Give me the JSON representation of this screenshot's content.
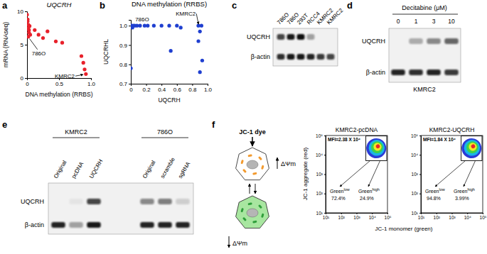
{
  "panel_labels": [
    "a",
    "b",
    "c",
    "d",
    "e",
    "f"
  ],
  "chart_data": [
    {
      "type": "scatter",
      "title": "UQCRH",
      "x_label": "DNA methylation (RRBS)",
      "y_label": "mRNA (RNAseq)",
      "x": [
        0.0,
        0.01,
        0.02,
        0.02,
        0.03,
        0.03,
        0.04,
        0.05,
        0.01,
        0.02,
        0.12,
        0.18,
        0.25,
        0.32,
        0.45,
        0.55,
        0.85,
        0.88,
        0.9,
        0.92
      ],
      "values": [
        9.5,
        8.5,
        8.0,
        7.5,
        7.2,
        6.8,
        7.8,
        6.5,
        8.8,
        6.2,
        7.2,
        6.5,
        6.0,
        7.0,
        5.5,
        5.3,
        3.3,
        2.3,
        1.3,
        0.6
      ],
      "color": "#e8212b",
      "marker": "circle",
      "xlim": [
        0,
        1
      ],
      "xticks": [
        0,
        0.5,
        {
          "value": 1,
          "label": "1.0"
        }
      ],
      "ylim": [
        0,
        10
      ],
      "yticks": [
        0,
        5,
        10
      ],
      "annotations": [
        {
          "text": "786O",
          "x": 0.03,
          "y": 6.2
        },
        {
          "text": "KMRC2",
          "x": 0.9,
          "y": 0.3
        }
      ]
    },
    {
      "type": "scatter",
      "title": "DNA methylation (RRBS)",
      "x_label": "UQCRH",
      "y_label": "UQCRHL",
      "x": [
        0.0,
        0.01,
        0.02,
        0.03,
        0.05,
        0.08,
        0.12,
        0.18,
        0.22,
        0.3,
        0.4,
        0.5,
        0.6,
        0.65,
        0.88,
        0.9,
        0.92,
        0.0,
        0.52,
        0.88,
        0.9,
        0.93
      ],
      "values": [
        1.0,
        1.0,
        0.99,
        1.0,
        1.0,
        1.0,
        1.0,
        1.0,
        1.0,
        1.0,
        1.0,
        1.0,
        1.0,
        0.99,
        1.0,
        0.97,
        1.0,
        0.78,
        0.87,
        0.92,
        0.76,
        0.82
      ],
      "color": "#1f3fd0",
      "marker": "circle",
      "xlim": [
        0,
        1
      ],
      "xticks": [
        0,
        0.2,
        0.4,
        0.6,
        0.8,
        {
          "value": 1,
          "label": "1.0"
        }
      ],
      "ylim": [
        0.7,
        1.03
      ],
      "yticks": [
        0.7,
        0.8,
        0.9,
        {
          "value": 1,
          "label": "1.0"
        }
      ],
      "annotations": [
        {
          "text": "786O",
          "x": 0.02,
          "y": 1.0
        },
        {
          "text": "KMRC2",
          "x": 0.9,
          "y": 1.0
        }
      ]
    }
  ],
  "blot_c": {
    "lanes": [
      "786O",
      "786O",
      "293T",
      "RCC4",
      "KMRC2",
      "KMRC2"
    ],
    "rows": [
      {
        "label": "UQCRH",
        "bands": [
          0.75,
          0.95,
          1.0,
          0.35,
          0.0,
          0.0
        ]
      },
      {
        "label": "β-actin",
        "bands": [
          0.85,
          0.95,
          0.95,
          0.9,
          0.8,
          0.75
        ]
      }
    ]
  },
  "blot_d": {
    "treatment": "Decitabine (μM)",
    "doses": [
      "0",
      "1",
      "3",
      "10"
    ],
    "cell_line": "KMRC2",
    "rows": [
      {
        "label": "UQCRH",
        "bands": [
          0.0,
          0.3,
          0.45,
          0.6
        ]
      },
      {
        "label": "β-actin",
        "bands": [
          0.9,
          0.85,
          0.9,
          0.8
        ]
      }
    ]
  },
  "blot_e": {
    "groups": [
      {
        "label": "KMRC2",
        "lanes": [
          "Original",
          "pcDNA",
          "UQCRH"
        ]
      },
      {
        "label": "786O",
        "lanes": [
          "Original",
          "scramble",
          "sgRNA"
        ]
      }
    ],
    "rows": [
      {
        "label": "UQCRH",
        "bands": [
          0.0,
          0.05,
          0.75,
          0.45,
          0.5,
          0.15
        ]
      },
      {
        "label": "β-actin",
        "bands": [
          0.9,
          0.35,
          0.95,
          0.9,
          0.9,
          0.9
        ]
      }
    ]
  },
  "diagram_f": {
    "dye": "JC-1 dye",
    "high": "ΔΨm",
    "low": "ΔΨm"
  },
  "flow_f": {
    "x_label": "JC-1 monomer (green)",
    "y_label": "JC-1 aggregate (red)",
    "log": true,
    "xlim": [
      10,
      100000
    ],
    "xticks": [
      {
        "value": 10,
        "label": "10¹"
      },
      {
        "value": 100,
        "label": "10²"
      },
      {
        "value": 1000,
        "label": "10³"
      },
      {
        "value": 10000,
        "label": "10⁴"
      },
      {
        "value": 100000,
        "label": "10⁵"
      }
    ],
    "ylim": [
      10,
      100000
    ],
    "yticks": [
      {
        "value": 10,
        "label": "10¹"
      },
      {
        "value": 100,
        "label": "10²"
      },
      {
        "value": 1000,
        "label": "10³"
      },
      {
        "value": 10000,
        "label": "10⁴"
      },
      {
        "value": 100000,
        "label": "10⁵"
      }
    ],
    "plots": [
      {
        "title": "KMRC2-pcDNA",
        "mfi": "MFI=2.38 X 10⁴",
        "gate": {
          "x": [
            4000,
            90000
          ],
          "y": [
            5000,
            95000
          ]
        },
        "populations": [
          {
            "name": "Green",
            "sup": "low",
            "percent": "72.4%"
          },
          {
            "name": "Green",
            "sup": "high",
            "percent": "24.9%"
          }
        ]
      },
      {
        "title": "KMRC2-UQCRH",
        "mfi": "MFI=1.84 X 10⁴",
        "gate": {
          "x": [
            4000,
            90000
          ],
          "y": [
            5000,
            95000
          ]
        },
        "populations": [
          {
            "name": "Green",
            "sup": "low",
            "percent": "94.8%"
          },
          {
            "name": "Green",
            "sup": "high",
            "percent": "3.99%"
          }
        ]
      }
    ]
  }
}
